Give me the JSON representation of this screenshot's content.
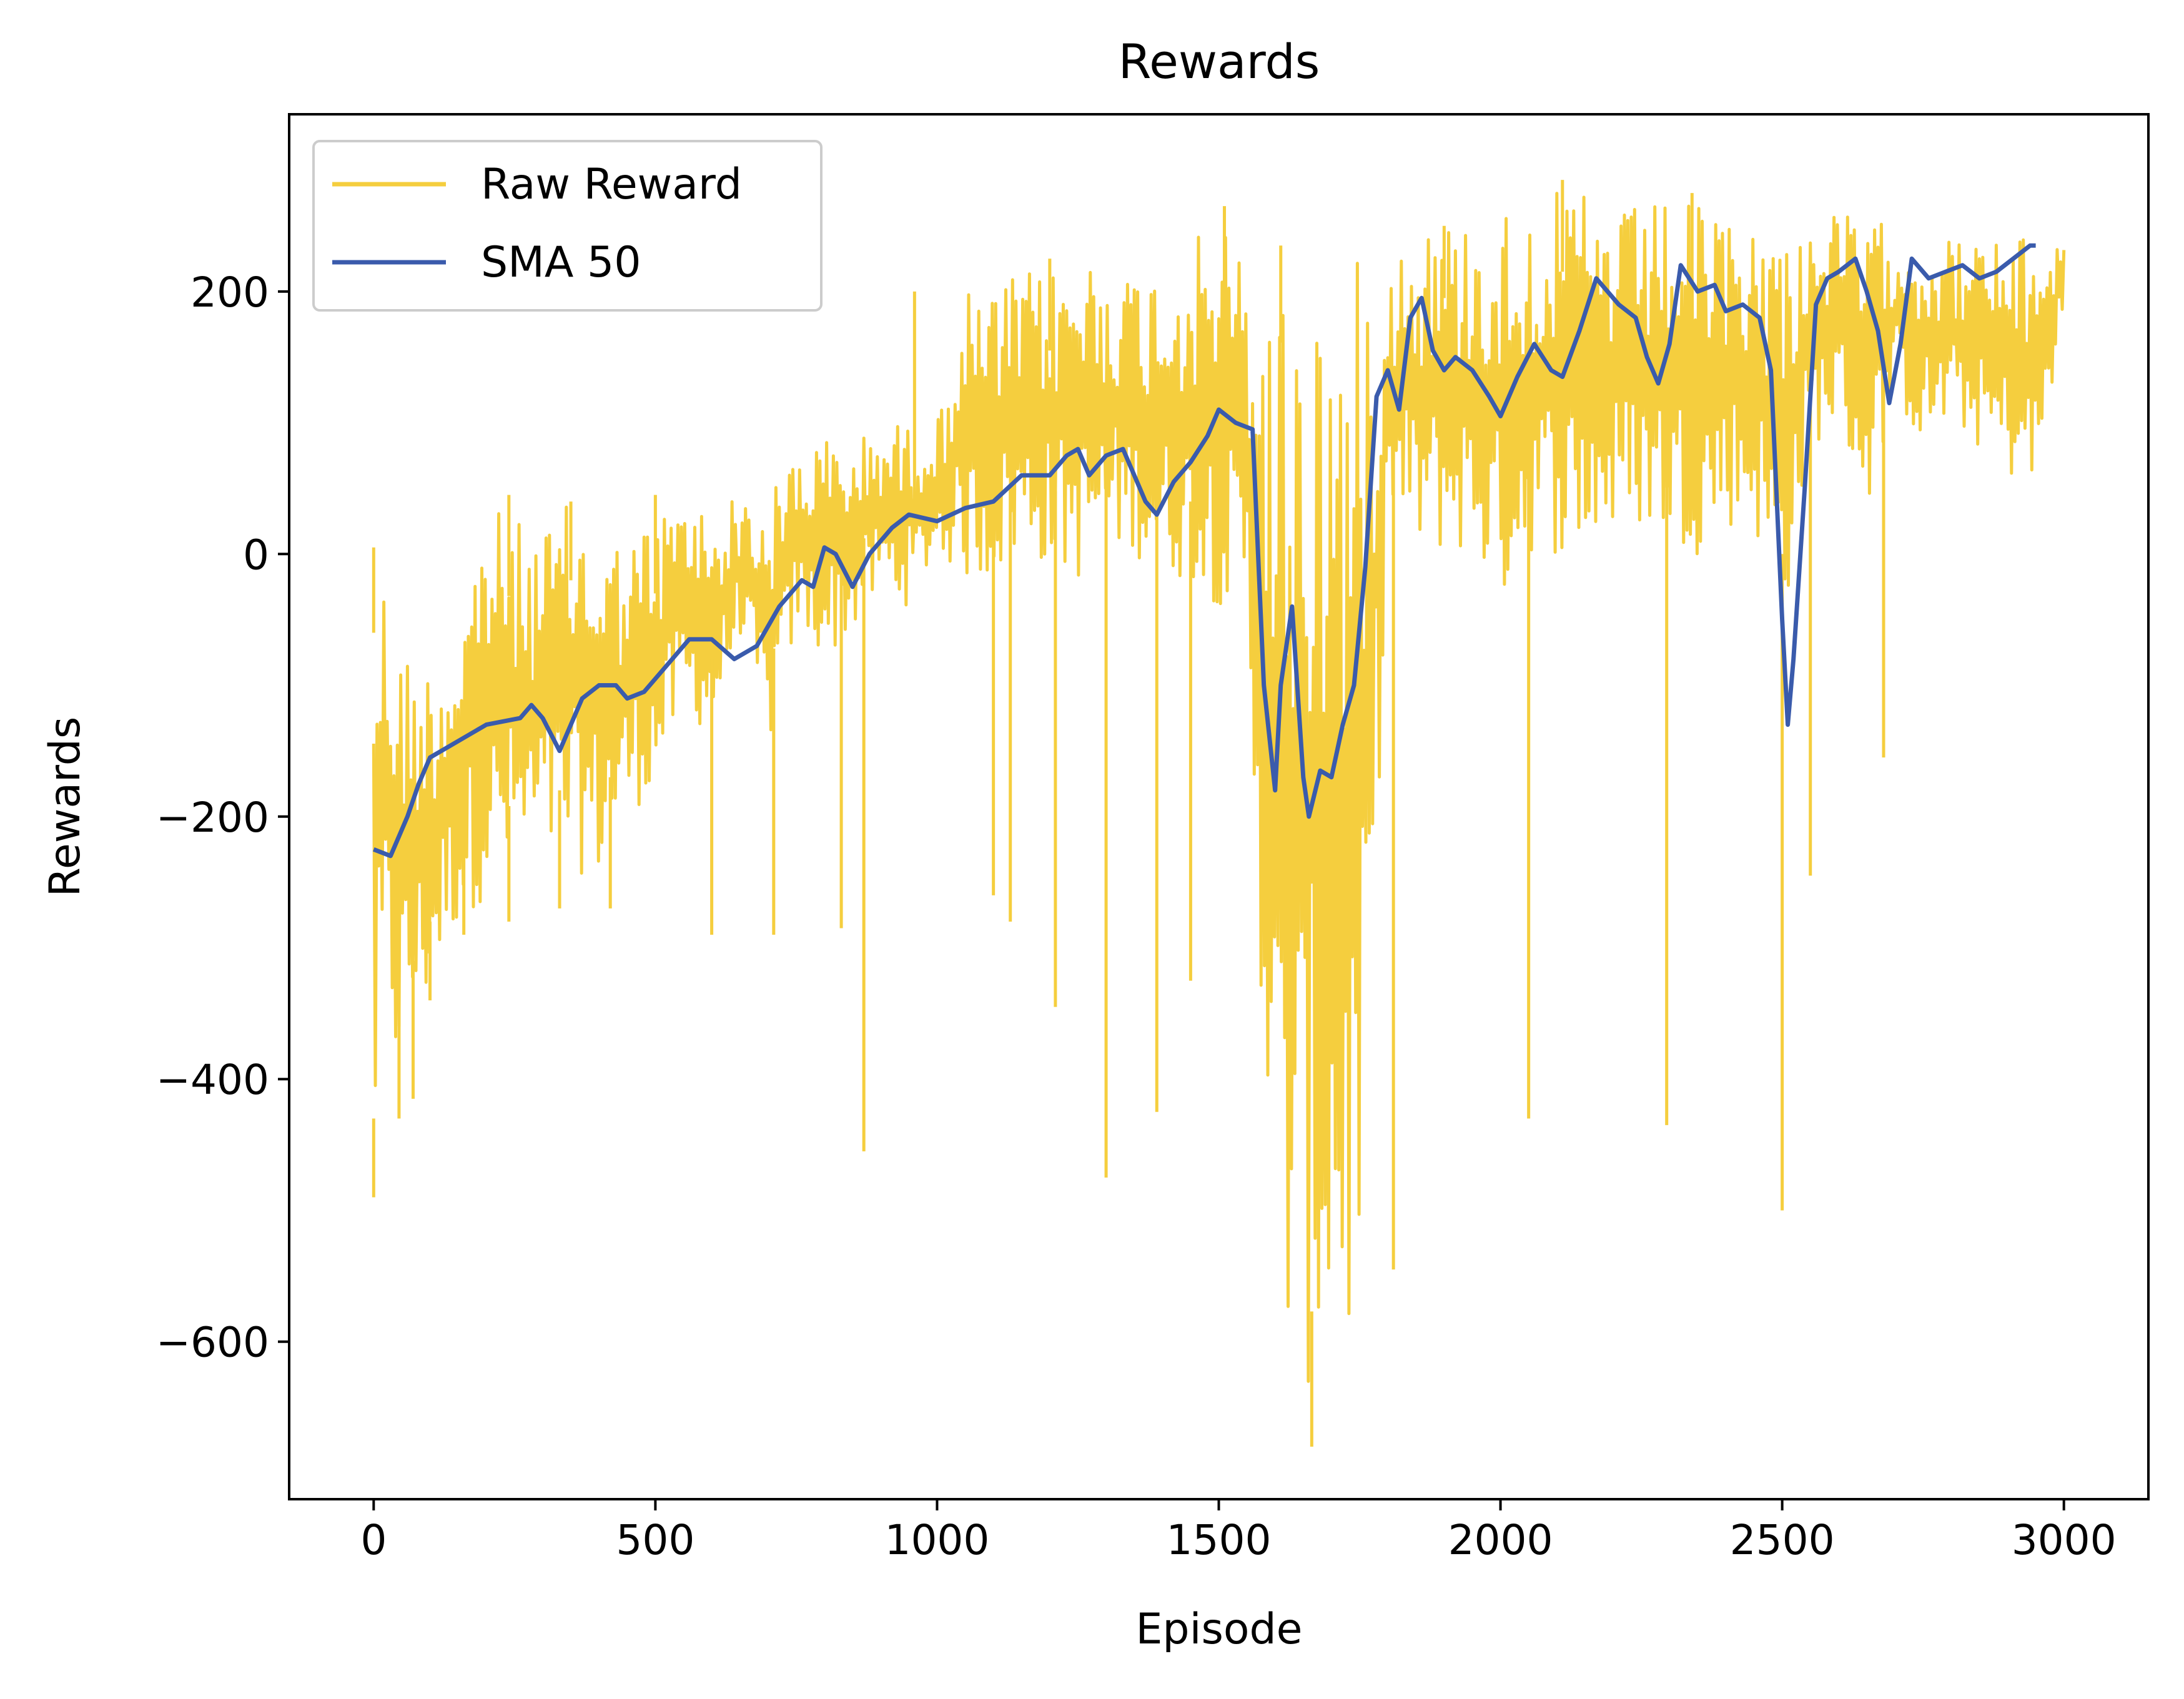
{
  "chart_data": {
    "type": "line",
    "title": "Rewards",
    "xlabel": "Episode",
    "ylabel": "Rewards",
    "xlim": [
      -150,
      3150
    ],
    "ylim": [
      -720,
      335
    ],
    "xticks": [
      0,
      500,
      1000,
      1500,
      2000,
      2500,
      3000
    ],
    "yticks": [
      -600,
      -400,
      -200,
      0,
      200
    ],
    "ytick_labels": [
      "−600",
      "−400",
      "−200",
      "0",
      "200"
    ],
    "grid": false,
    "legend": "top-left",
    "colors": {
      "raw": "#F5CE3E",
      "sma": "#3A5BAC"
    },
    "series": [
      {
        "name": "Raw Reward",
        "style": "noisy-band",
        "x": [
          0,
          20,
          40,
          60,
          80,
          100,
          140,
          200,
          250,
          300,
          350,
          400,
          450,
          500,
          550,
          600,
          650,
          700,
          750,
          800,
          850,
          900,
          950,
          1000,
          1050,
          1100,
          1150,
          1200,
          1250,
          1300,
          1350,
          1400,
          1450,
          1500,
          1550,
          1600,
          1650,
          1700,
          1750,
          1800,
          1850,
          1900,
          1950,
          2000,
          2050,
          2100,
          2150,
          2200,
          2250,
          2300,
          2350,
          2400,
          2450,
          2500,
          2550,
          2600,
          2650,
          2700,
          2750,
          2800,
          2850,
          2900,
          2950,
          3000
        ],
        "upper": [
          0,
          -10,
          -55,
          -70,
          -80,
          -80,
          -60,
          40,
          25,
          20,
          40,
          20,
          10,
          30,
          45,
          35,
          45,
          40,
          85,
          90,
          85,
          100,
          100,
          100,
          200,
          200,
          215,
          215,
          230,
          230,
          215,
          225,
          235,
          260,
          220,
          220,
          225,
          225,
          225,
          235,
          255,
          255,
          255,
          265,
          270,
          275,
          275,
          260,
          265,
          270,
          265,
          255,
          255,
          250,
          255,
          260,
          255,
          250,
          245,
          240,
          240,
          240,
          240,
          240
        ],
        "lower": [
          -490,
          -350,
          -400,
          -380,
          -360,
          -340,
          -290,
          -260,
          -250,
          -240,
          -240,
          -250,
          -200,
          -180,
          -120,
          -140,
          -60,
          -150,
          -60,
          -80,
          -60,
          -30,
          -40,
          0,
          -20,
          -20,
          0,
          -10,
          -20,
          0,
          0,
          -20,
          -20,
          -40,
          -60,
          -610,
          -640,
          -630,
          -620,
          20,
          0,
          0,
          0,
          -40,
          0,
          0,
          0,
          10,
          20,
          10,
          0,
          20,
          20,
          -60,
          80,
          100,
          30,
          120,
          80,
          100,
          80,
          60,
          40,
          190
        ],
        "spikes_down": [
          [
            0,
            -490
          ],
          [
            45,
            -430
          ],
          [
            70,
            -415
          ],
          [
            100,
            -340
          ],
          [
            160,
            -290
          ],
          [
            240,
            -280
          ],
          [
            330,
            -270
          ],
          [
            420,
            -270
          ],
          [
            600,
            -290
          ],
          [
            710,
            -290
          ],
          [
            830,
            -285
          ],
          [
            870,
            -455
          ],
          [
            1100,
            -260
          ],
          [
            1130,
            -280
          ],
          [
            1210,
            -345
          ],
          [
            1300,
            -475
          ],
          [
            1390,
            -425
          ],
          [
            1450,
            -325
          ],
          [
            1665,
            -680
          ],
          [
            1810,
            -545
          ],
          [
            2050,
            -430
          ],
          [
            2295,
            -435
          ],
          [
            2500,
            -500
          ],
          [
            2550,
            -245
          ],
          [
            2680,
            -155
          ]
        ],
        "spikes_up": [
          [
            0,
            5
          ],
          [
            240,
            45
          ],
          [
            350,
            40
          ],
          [
            500,
            45
          ],
          [
            960,
            200
          ],
          [
            1200,
            225
          ],
          [
            1510,
            265
          ],
          [
            1610,
            235
          ],
          [
            1900,
            250
          ],
          [
            2110,
            285
          ],
          [
            2340,
            275
          ]
        ]
      },
      {
        "name": "SMA 50",
        "style": "line",
        "x": [
          0,
          30,
          60,
          80,
          100,
          140,
          200,
          260,
          280,
          300,
          330,
          370,
          400,
          430,
          450,
          480,
          520,
          560,
          600,
          640,
          680,
          720,
          760,
          780,
          800,
          820,
          850,
          880,
          920,
          950,
          1000,
          1050,
          1100,
          1150,
          1200,
          1230,
          1250,
          1270,
          1300,
          1330,
          1370,
          1390,
          1420,
          1450,
          1480,
          1500,
          1530,
          1560,
          1580,
          1600,
          1610,
          1630,
          1650,
          1660,
          1680,
          1700,
          1720,
          1740,
          1760,
          1780,
          1800,
          1820,
          1840,
          1860,
          1880,
          1900,
          1920,
          1950,
          1980,
          2000,
          2030,
          2060,
          2090,
          2110,
          2140,
          2170,
          2190,
          2210,
          2240,
          2260,
          2280,
          2300,
          2320,
          2350,
          2380,
          2400,
          2430,
          2460,
          2480,
          2500,
          2510,
          2520,
          2540,
          2560,
          2580,
          2600,
          2630,
          2650,
          2670,
          2690,
          2710,
          2730,
          2760,
          2790,
          2820,
          2850,
          2880,
          2910,
          2940,
          2950
        ],
        "values": [
          -225,
          -230,
          -200,
          -175,
          -155,
          -145,
          -130,
          -125,
          -115,
          -125,
          -150,
          -110,
          -100,
          -100,
          -110,
          -105,
          -85,
          -65,
          -65,
          -80,
          -70,
          -40,
          -20,
          -25,
          5,
          0,
          -25,
          0,
          20,
          30,
          25,
          35,
          40,
          60,
          60,
          75,
          80,
          60,
          75,
          80,
          40,
          30,
          55,
          70,
          90,
          110,
          100,
          95,
          -100,
          -180,
          -100,
          -40,
          -170,
          -200,
          -165,
          -170,
          -130,
          -100,
          -10,
          120,
          140,
          110,
          180,
          195,
          155,
          140,
          150,
          140,
          120,
          105,
          135,
          160,
          140,
          135,
          170,
          210,
          200,
          190,
          180,
          150,
          130,
          160,
          220,
          200,
          205,
          185,
          190,
          180,
          140,
          -50,
          -130,
          -80,
          50,
          190,
          210,
          215,
          225,
          200,
          170,
          115,
          160,
          225,
          210,
          215,
          220,
          210,
          215,
          225,
          235,
          235
        ]
      }
    ]
  }
}
